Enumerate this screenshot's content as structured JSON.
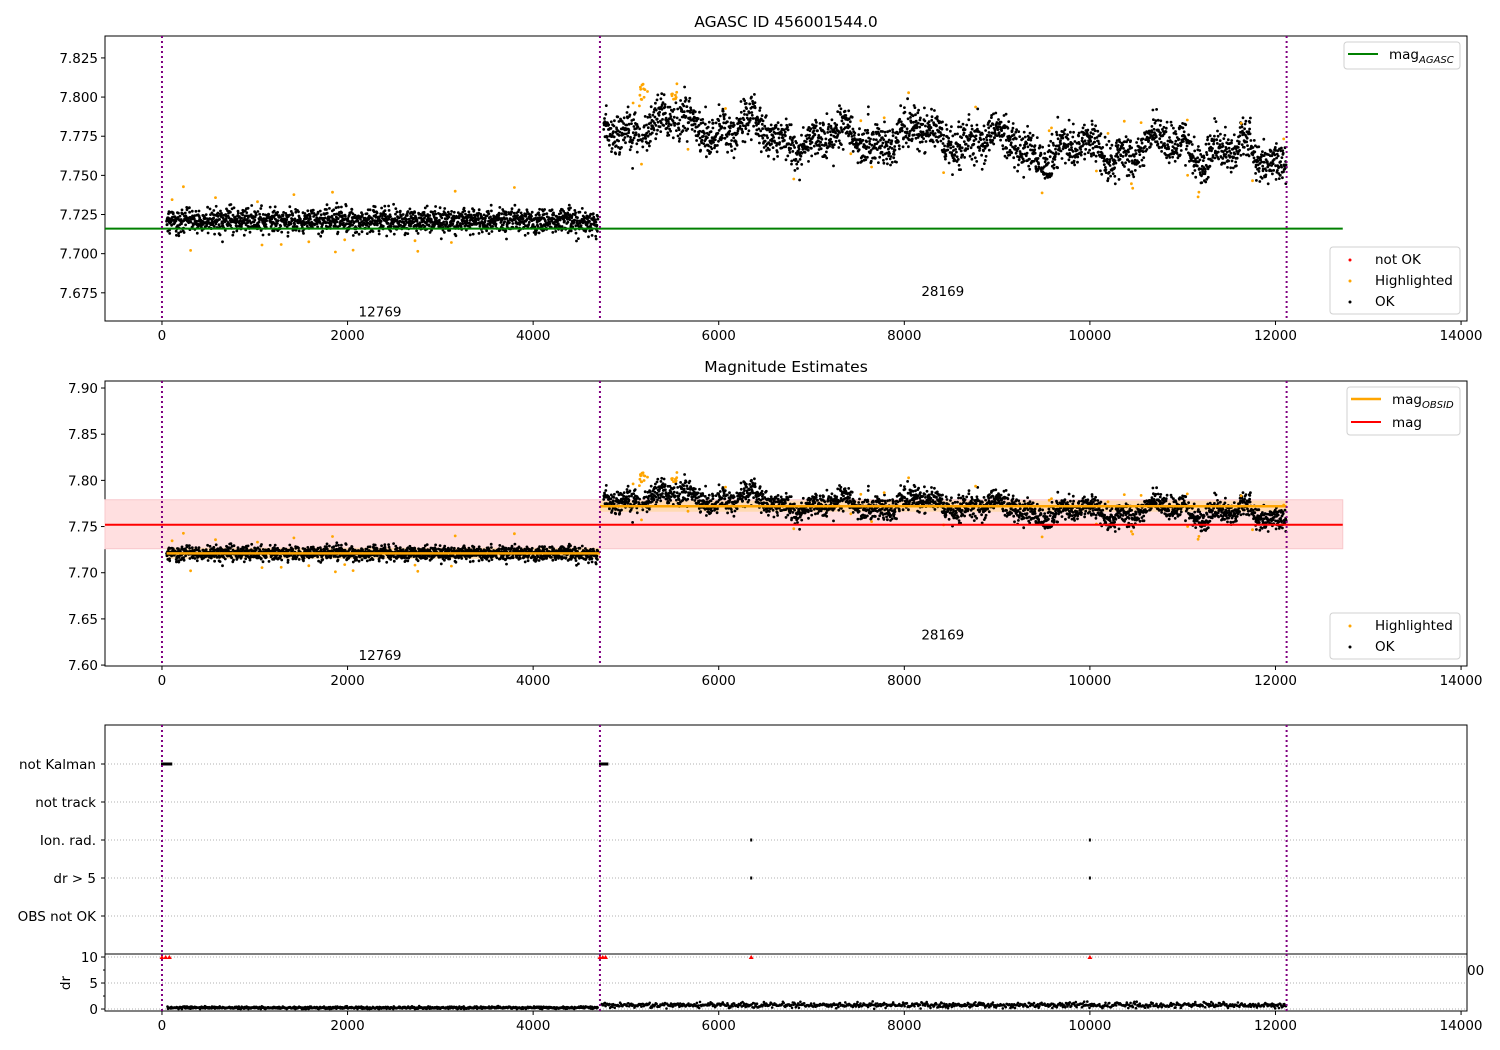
{
  "chart_data": [
    {
      "type": "scatter",
      "title": "AGASC ID 456001544.0",
      "xlim": [
        -614,
        14064
      ],
      "ylim": [
        7.657,
        7.839
      ],
      "xticks": [
        0,
        2000,
        4000,
        6000,
        8000,
        10000,
        12000,
        14000
      ],
      "yticks": [
        "7.675",
        "7.700",
        "7.725",
        "7.750",
        "7.775",
        "7.800",
        "7.825"
      ],
      "obs_boundaries": [
        0,
        4720,
        12120
      ],
      "obs_labels": [
        {
          "text": "12769",
          "x": 2350,
          "y": 7.663
        },
        {
          "text": "28169",
          "x": 8415,
          "y": 7.676
        }
      ],
      "lines": [
        {
          "name": "mag_AGASC",
          "value": 7.716,
          "x_range": [
            -614,
            12725
          ],
          "color": "#008000"
        }
      ],
      "legend_lines": {
        "label": "mag",
        "sub": "AGASC"
      },
      "legend_points": [
        "not OK",
        "Highlighted",
        "OK"
      ],
      "legend_placement": [
        "top-right",
        "bottom-right"
      ]
    },
    {
      "type": "scatter",
      "title": "Magnitude Estimates",
      "xlim": [
        -614,
        14064
      ],
      "ylim": [
        7.599,
        7.9076
      ],
      "xticks": [
        0,
        2000,
        4000,
        6000,
        8000,
        10000,
        12000,
        14000
      ],
      "yticks": [
        "7.60",
        "7.65",
        "7.70",
        "7.75",
        "7.80",
        "7.85",
        "7.90"
      ],
      "obs_labels": [
        {
          "text": "12769",
          "x": 2350,
          "y": 7.611
        },
        {
          "text": "28169",
          "x": 8415,
          "y": 7.633
        }
      ],
      "mag": {
        "value": 7.752,
        "band": [
          7.726,
          7.779
        ],
        "x_range": [
          -614,
          12725
        ],
        "color": "#ff0000"
      },
      "mag_obsid": [
        {
          "x_range": [
            50,
            4720
          ],
          "value": 7.721
        },
        {
          "x_range": [
            4720,
            12120
          ],
          "value": 7.772
        }
      ],
      "legend_lines": [
        {
          "label": "mag",
          "sub": "OBSID"
        },
        {
          "label": "mag",
          "sub": ""
        }
      ],
      "legend_points": [
        "Highlighted",
        "OK"
      ],
      "legend_placement": [
        "top-right",
        "bottom-right"
      ]
    },
    {
      "type": "scatter",
      "title": "",
      "categories": [
        "not Kalman",
        "not track",
        "Ion. rad.",
        "dr > 5",
        "OBS not OK"
      ],
      "flags": [
        {
          "category": "not Kalman",
          "x": [
            0,
            100
          ]
        },
        {
          "category": "not Kalman",
          "x": [
            4720,
            4800
          ]
        },
        {
          "category": "Ion. rad.",
          "x": [
            6350,
            6350
          ]
        },
        {
          "category": "Ion. rad.",
          "x": [
            10000,
            10000
          ]
        },
        {
          "category": "dr > 5",
          "x": [
            6350,
            6350
          ]
        },
        {
          "category": "dr > 5",
          "x": [
            10000,
            10000
          ]
        }
      ]
    },
    {
      "type": "scatter",
      "ylabel": "dr",
      "ylim": [
        -0.38,
        10.58
      ],
      "yticks": [
        "0",
        "5",
        "10"
      ],
      "xticks": [
        0,
        2000,
        4000,
        6000,
        8000,
        10000,
        12000,
        14000
      ],
      "clipped_label": "00",
      "segments": [
        {
          "x_range": [
            60,
            4700
          ],
          "mean": 0.25,
          "sd": 0.12
        },
        {
          "x_range": [
            4740,
            12120
          ],
          "mean": 0.75,
          "sd": 0.25
        }
      ],
      "capped_points": [
        [
          0,
          10
        ],
        [
          40,
          10
        ],
        [
          80,
          10
        ],
        [
          4720,
          10
        ],
        [
          4750,
          10
        ],
        [
          4780,
          10
        ],
        [
          6350,
          10
        ],
        [
          10000,
          10
        ]
      ]
    }
  ],
  "series_model": {
    "segments": [
      {
        "obsid": "12769",
        "x_range": [
          50,
          4700
        ],
        "mean_start": 7.721,
        "mean_end": 7.721,
        "sd": 0.004
      },
      {
        "obsid": "28169",
        "x_range": [
          4760,
          12120
        ],
        "mean_start": 7.782,
        "mean_end": 7.762,
        "sd": 0.0065
      }
    ]
  },
  "colors": {
    "ok": "#000000",
    "highlighted": "#ffa500",
    "not_ok": "#ff0000",
    "boundary": "#800080",
    "agasc": "#008000",
    "mag": "#ff0000",
    "band": "#ffdfe0"
  }
}
